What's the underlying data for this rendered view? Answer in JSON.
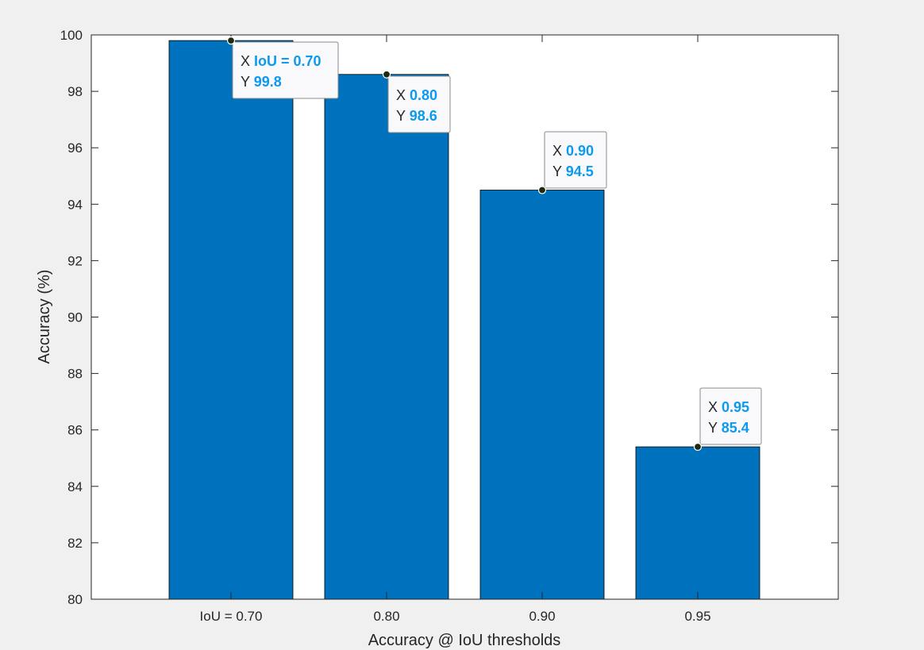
{
  "chart_data": {
    "type": "bar",
    "categories": [
      "IoU = 0.70",
      "0.80",
      "0.90",
      "0.95"
    ],
    "values": [
      99.8,
      98.6,
      94.5,
      85.4
    ],
    "title": "",
    "xlabel": "Accuracy @ IoU thresholds",
    "ylabel": "Accuracy (%)",
    "ylim": [
      80,
      100
    ],
    "yticks": [
      "80",
      "82",
      "84",
      "86",
      "88",
      "90",
      "92",
      "94",
      "96",
      "98",
      "100"
    ],
    "grid": false,
    "bar_color": "#0072bd",
    "datatips": [
      {
        "x_prefix": "X",
        "x": "IoU = 0.70",
        "y_prefix": "Y",
        "y": "99.8"
      },
      {
        "x_prefix": "X",
        "x": "0.80",
        "y_prefix": "Y",
        "y": "98.6"
      },
      {
        "x_prefix": "X",
        "x": "0.90",
        "y_prefix": "Y",
        "y": "94.5"
      },
      {
        "x_prefix": "X",
        "x": "0.95",
        "y_prefix": "Y",
        "y": "85.4"
      }
    ],
    "datatip_value_color": "#0b9af0"
  }
}
